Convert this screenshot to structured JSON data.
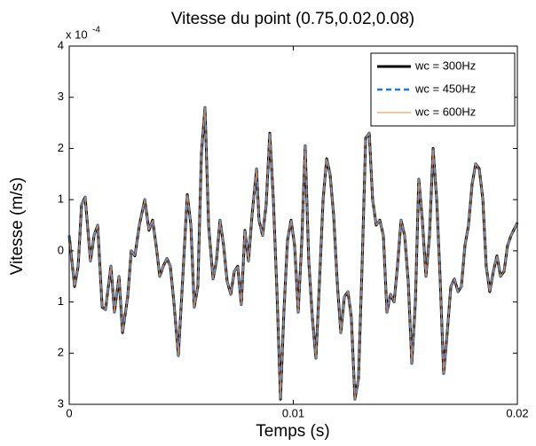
{
  "chart_data": {
    "type": "line",
    "title": "Vitesse du point (0.75,0.02,0.08)",
    "xlabel": "Temps (s)",
    "ylabel": "Vitesse (m/s)",
    "y_multiplier": "x 10",
    "y_multiplier_exponent": "-4",
    "xlim": [
      0,
      0.02
    ],
    "xticks": [
      0,
      0.01,
      0.02
    ],
    "ylim": [
      -3,
      4
    ],
    "yticks": [
      {
        "value": -3,
        "label": "3"
      },
      {
        "value": -2,
        "label": "2"
      },
      {
        "value": -1,
        "label": "1"
      },
      0,
      1,
      2,
      3,
      4
    ],
    "grid": false,
    "legend": "upper right",
    "x": [
      0,
      0.00024,
      0.0004,
      0.00055,
      0.00071,
      0.00095,
      0.00111,
      0.00127,
      0.00147,
      0.00162,
      0.00186,
      0.00202,
      0.00222,
      0.00238,
      0.00261,
      0.00277,
      0.00293,
      0.00313,
      0.00337,
      0.00356,
      0.00372,
      0.00388,
      0.00404,
      0.0042,
      0.00436,
      0.00451,
      0.00467,
      0.00487,
      0.00507,
      0.00527,
      0.00543,
      0.00558,
      0.00574,
      0.0059,
      0.00606,
      0.00622,
      0.00642,
      0.00657,
      0.00673,
      0.00689,
      0.00705,
      0.00721,
      0.00737,
      0.00752,
      0.00768,
      0.00784,
      0.008,
      0.00816,
      0.00836,
      0.00847,
      0.00863,
      0.00879,
      0.00895,
      0.00911,
      0.00927,
      0.00943,
      0.00958,
      0.00974,
      0.0099,
      0.01006,
      0.01022,
      0.01038,
      0.01053,
      0.01069,
      0.01085,
      0.01101,
      0.01117,
      0.01133,
      0.01149,
      0.01164,
      0.0118,
      0.01196,
      0.01212,
      0.01228,
      0.01244,
      0.01259,
      0.01275,
      0.01291,
      0.01307,
      0.01323,
      0.01339,
      0.01354,
      0.0137,
      0.01386,
      0.01402,
      0.01418,
      0.01434,
      0.0145,
      0.01465,
      0.01481,
      0.01497,
      0.01513,
      0.01529,
      0.01545,
      0.0156,
      0.01576,
      0.01592,
      0.01608,
      0.01624,
      0.0164,
      0.01655,
      0.01671,
      0.01687,
      0.01703,
      0.01719,
      0.01735,
      0.0175,
      0.01766,
      0.01782,
      0.01798,
      0.01814,
      0.0183,
      0.01846,
      0.01861,
      0.01877,
      0.01893,
      0.01909,
      0.01925,
      0.01941,
      0.01956,
      0.01972,
      0.02
    ],
    "series": [
      {
        "name": "wc = 300Hz",
        "color": "#000000",
        "width": 3,
        "dash": false,
        "values": [
          0.3,
          -0.7,
          -0.3,
          0.9,
          1.05,
          -0.2,
          0.3,
          0.5,
          -1.1,
          -1.15,
          -0.3,
          -1.2,
          -0.5,
          -1.6,
          -0.9,
          0,
          -0.1,
          0.5,
          1.0,
          0.4,
          0.6,
          0.1,
          -0.5,
          -0.3,
          -0.15,
          -0.3,
          -1.0,
          -2.05,
          -0.5,
          1.1,
          0.5,
          -1.1,
          -0.7,
          1.9,
          2.8,
          0.5,
          -0.55,
          -0.2,
          0.6,
          0.1,
          -0.6,
          -0.85,
          -0.4,
          -0.3,
          -1.05,
          0.4,
          -0.2,
          0.7,
          1.6,
          0.6,
          0.3,
          0.9,
          2.3,
          1.0,
          -0.8,
          -2.9,
          -1.2,
          0.2,
          0.6,
          0.1,
          -1.2,
          0.2,
          2.05,
          -0.2,
          -1.3,
          -2.1,
          -0.6,
          1.0,
          1.8,
          1.5,
          0.7,
          -0.6,
          -1.6,
          -0.9,
          -0.8,
          -1.3,
          -2.9,
          -2.5,
          -0.3,
          2.2,
          2.3,
          1.0,
          0.5,
          0.6,
          0.3,
          -1.2,
          -0.85,
          -1.0,
          -0.3,
          0.6,
          0.3,
          -0.6,
          -2.2,
          -1.0,
          1.4,
          0.6,
          -0.5,
          0.3,
          2.0,
          1.0,
          -0.5,
          -2.4,
          -1.6,
          -0.7,
          -0.55,
          -0.8,
          -0.7,
          0.1,
          0.5,
          1.3,
          1.7,
          1.6,
          1.0,
          -0.3,
          -0.8,
          -0.4,
          -0.1,
          -0.5,
          -0.4,
          0.1,
          0.3,
          0.55
        ]
      },
      {
        "name": "wc = 450Hz",
        "color": "#1e78e6",
        "width": 2.5,
        "dash": true,
        "values": [
          0.3,
          -0.7,
          -0.3,
          0.9,
          1.05,
          -0.2,
          0.3,
          0.5,
          -1.1,
          -1.15,
          -0.3,
          -1.2,
          -0.5,
          -1.6,
          -0.9,
          0,
          -0.1,
          0.5,
          1.0,
          0.4,
          0.6,
          0.1,
          -0.5,
          -0.3,
          -0.15,
          -0.3,
          -1.0,
          -2.05,
          -0.5,
          1.1,
          0.5,
          -1.1,
          -0.7,
          1.9,
          2.8,
          0.5,
          -0.55,
          -0.2,
          0.6,
          0.1,
          -0.6,
          -0.85,
          -0.4,
          -0.3,
          -1.05,
          0.4,
          -0.2,
          0.7,
          1.6,
          0.6,
          0.3,
          0.9,
          2.3,
          1.0,
          -0.8,
          -2.9,
          -1.2,
          0.2,
          0.6,
          0.1,
          -1.2,
          0.2,
          2.05,
          -0.2,
          -1.3,
          -2.1,
          -0.6,
          1.0,
          1.8,
          1.5,
          0.7,
          -0.6,
          -1.6,
          -0.9,
          -0.8,
          -1.3,
          -2.9,
          -2.5,
          -0.3,
          2.2,
          2.3,
          1.0,
          0.5,
          0.6,
          0.3,
          -1.2,
          -0.85,
          -1.0,
          -0.3,
          0.6,
          0.3,
          -0.6,
          -2.2,
          -1.0,
          1.4,
          0.6,
          -0.5,
          0.3,
          2.0,
          1.0,
          -0.5,
          -2.4,
          -1.6,
          -0.7,
          -0.55,
          -0.8,
          -0.7,
          0.1,
          0.5,
          1.3,
          1.7,
          1.6,
          1.0,
          -0.3,
          -0.8,
          -0.4,
          -0.1,
          -0.5,
          -0.4,
          0.1,
          0.3,
          0.55
        ]
      },
      {
        "name": "wc = 600Hz",
        "color": "#e8883a",
        "width": 1,
        "dash": false,
        "values": [
          0.3,
          -0.7,
          -0.3,
          0.9,
          1.05,
          -0.2,
          0.3,
          0.5,
          -1.1,
          -1.15,
          -0.3,
          -1.2,
          -0.5,
          -1.6,
          -0.9,
          0,
          -0.1,
          0.5,
          1.0,
          0.4,
          0.6,
          0.1,
          -0.5,
          -0.3,
          -0.15,
          -0.3,
          -1.0,
          -2.05,
          -0.5,
          1.1,
          0.5,
          -1.1,
          -0.7,
          1.9,
          2.8,
          0.5,
          -0.55,
          -0.2,
          0.6,
          0.1,
          -0.6,
          -0.85,
          -0.4,
          -0.3,
          -1.05,
          0.4,
          -0.2,
          0.7,
          1.6,
          0.6,
          0.3,
          0.9,
          2.3,
          1.0,
          -0.8,
          -2.9,
          -1.2,
          0.2,
          0.6,
          0.1,
          -1.2,
          0.2,
          2.05,
          -0.2,
          -1.3,
          -2.1,
          -0.6,
          1.0,
          1.8,
          1.5,
          0.7,
          -0.6,
          -1.6,
          -0.9,
          -0.8,
          -1.3,
          -2.9,
          -2.5,
          -0.3,
          2.2,
          2.3,
          1.0,
          0.5,
          0.6,
          0.3,
          -1.2,
          -0.85,
          -1.0,
          -0.3,
          0.6,
          0.3,
          -0.6,
          -2.2,
          -1.0,
          1.4,
          0.6,
          -0.5,
          0.3,
          2.0,
          1.0,
          -0.5,
          -2.4,
          -1.6,
          -0.7,
          -0.55,
          -0.8,
          -0.7,
          0.1,
          0.5,
          1.3,
          1.7,
          1.6,
          1.0,
          -0.3,
          -0.8,
          -0.4,
          -0.1,
          -0.5,
          -0.4,
          0.1,
          0.3,
          0.55
        ]
      }
    ]
  }
}
